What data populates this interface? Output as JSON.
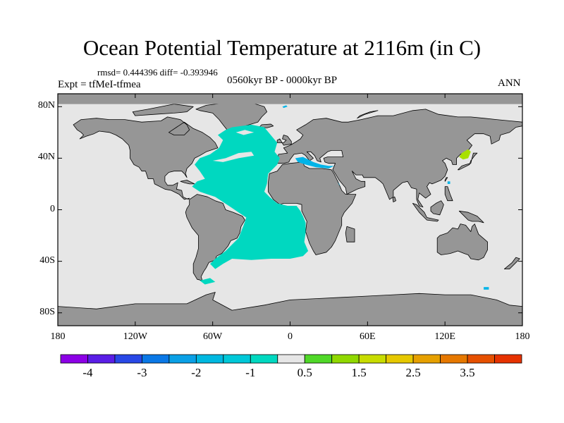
{
  "title": "Ocean Potential Temperature at 2116m (in C)",
  "stats_text": "rmsd= 0.444396 diff= -0.393946",
  "expt_text": "Expt = tfMeI-tfmea",
  "period_text": "0560kyr BP - 0000kyr BP",
  "season_text": "ANN",
  "colors": {
    "land": "#969696",
    "ocean_default": "#e6e6e6",
    "anomaly_cyan": "#00d8c0",
    "anomaly_blue": "#00b4e8",
    "anomaly_green": "#a8e000"
  },
  "map": {
    "lon_range": [
      -180,
      180
    ],
    "lat_range": [
      -90,
      90
    ],
    "x_ticks": [
      {
        "value": -180,
        "label": "180"
      },
      {
        "value": -120,
        "label": "120W"
      },
      {
        "value": -60,
        "label": "60W"
      },
      {
        "value": 0,
        "label": "0"
      },
      {
        "value": 60,
        "label": "60E"
      },
      {
        "value": 120,
        "label": "120E"
      },
      {
        "value": 180,
        "label": "180"
      }
    ],
    "y_ticks": [
      {
        "value": 80,
        "label": "80N"
      },
      {
        "value": 40,
        "label": "40N"
      },
      {
        "value": 0,
        "label": "0"
      },
      {
        "value": -40,
        "label": "40S"
      },
      {
        "value": -80,
        "label": "80S"
      }
    ]
  },
  "colorbar": {
    "colors": [
      "#8c00e6",
      "#5a1ee6",
      "#2848e6",
      "#0a78e6",
      "#0aa0e6",
      "#00b8e0",
      "#00c8d8",
      "#00d8c0",
      "#e6e6e6",
      "#50d828",
      "#90d800",
      "#c8dc00",
      "#e6c800",
      "#e6a000",
      "#e67800",
      "#e65000",
      "#e63200"
    ],
    "labels": [
      "-4",
      "-3",
      "-2",
      "-1",
      "0.5",
      "1.5",
      "2.5",
      "3.5"
    ]
  }
}
